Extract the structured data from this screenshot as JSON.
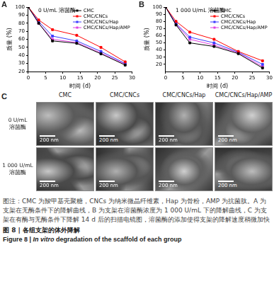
{
  "chart_data": [
    {
      "type": "line",
      "title": "A",
      "subtitle": "0 U/mL 溶菌酶",
      "x_label": "时间 (d)",
      "y_label": "质量 (%)",
      "x": [
        0,
        3,
        7,
        14,
        21,
        28
      ],
      "series": [
        {
          "name": "CMC",
          "color": "#000000",
          "values": [
            100,
            80,
            58,
            55,
            42,
            28
          ]
        },
        {
          "name": "CMC/CNCs",
          "color": "#ff0000",
          "values": [
            100,
            84,
            72,
            65,
            50,
            32
          ]
        },
        {
          "name": "CMC/CNCs/Hap",
          "color": "#3b3bff",
          "values": [
            100,
            82,
            64,
            58,
            45,
            30
          ]
        },
        {
          "name": "CMC/CNCs/Hap/AMP",
          "color": "#e040e0",
          "values": [
            100,
            80,
            60,
            56,
            43,
            29
          ]
        }
      ],
      "xlim": [
        0,
        30
      ],
      "xticks": [
        0,
        5,
        10,
        15,
        20,
        25,
        30
      ],
      "ylim": [
        20,
        100
      ],
      "yticks": [
        20,
        30,
        40,
        50,
        60,
        70,
        80,
        90,
        100
      ],
      "grid": false,
      "legend": "upper right",
      "marker": "square"
    },
    {
      "type": "line",
      "title": "B",
      "subtitle": "1 000 U/mL 溶菌酶",
      "x_label": "时间 (d)",
      "y_label": "质量 (%)",
      "x": [
        0,
        3,
        7,
        14,
        21,
        28
      ],
      "series": [
        {
          "name": "CMC",
          "color": "#000000",
          "values": [
            100,
            75,
            50,
            45,
            35,
            15
          ]
        },
        {
          "name": "CMC/CNCs",
          "color": "#ff0000",
          "values": [
            100,
            80,
            65,
            55,
            38,
            25
          ]
        },
        {
          "name": "CMC/CNCs/Hap",
          "color": "#3b3bff",
          "values": [
            100,
            77,
            58,
            50,
            37,
            20
          ]
        },
        {
          "name": "CMC/CNCs/Hap/AMP",
          "color": "#e040e0",
          "values": [
            100,
            76,
            55,
            47,
            36,
            17
          ]
        }
      ],
      "xlim": [
        0,
        30
      ],
      "xticks": [
        0,
        5,
        10,
        15,
        20,
        25,
        30
      ],
      "ylim": [
        10,
        100
      ],
      "yticks": [
        20,
        30,
        40,
        50,
        60,
        70,
        80,
        90,
        100
      ],
      "grid": false,
      "legend": "upper right",
      "marker": "square"
    }
  ],
  "panel_c": {
    "label": "C",
    "columns": [
      "CMC",
      "CMC/CNCs",
      "CMC/CNCs/Hap",
      "CMC/CNCs/Hap/AMP"
    ],
    "rows": [
      [
        "0 U/mL",
        "溶菌酶"
      ],
      [
        "1 000 U/mL",
        "溶菌酶"
      ]
    ],
    "scale_bar": "200 nm"
  },
  "caption": {
    "note": "图注：CMC 为羧甲基壳聚糖，CNCs 为纳米微晶纤维素，Hap 为骨粉，AMP 为抗菌肽。A 为支架在无酶条件下的降解曲线，B 为支架在溶菌酶浓度为 1 000 U/mL 下的降解曲线，C 为支架在有酶与无酶条件下降解 14 d 后的扫描电镜图，溶菌酶的添加使得支架的降解速度稍微加快",
    "title_cn": "图 8 | 各组支架的体外降解",
    "title_en": [
      "Figure 8 | ",
      "In vitro",
      " degradation of the scaffold of each group"
    ]
  }
}
